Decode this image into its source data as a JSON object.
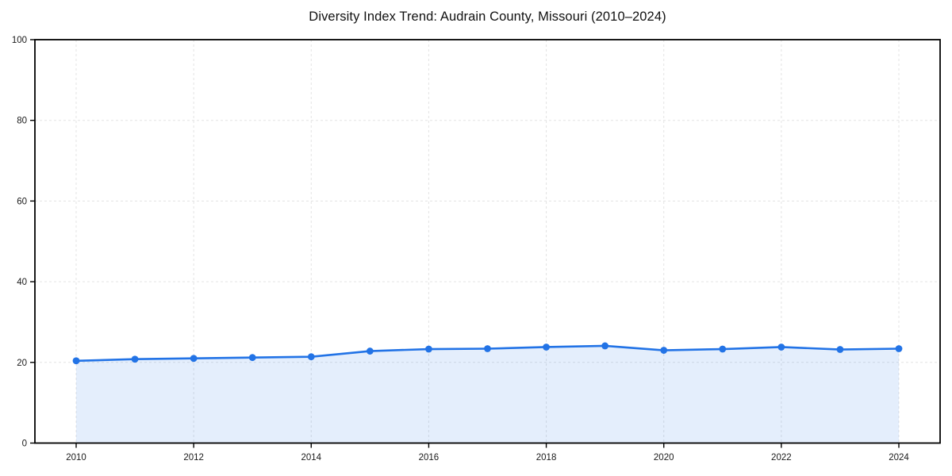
{
  "chart_data": {
    "type": "line",
    "title": "Diversity Index Trend: Audrain County, Missouri (2010–2024)",
    "xlabel": "",
    "ylabel": "",
    "x": [
      2010,
      2011,
      2012,
      2013,
      2014,
      2015,
      2016,
      2017,
      2018,
      2019,
      2020,
      2021,
      2022,
      2023,
      2024
    ],
    "values": [
      20.4,
      20.8,
      21.0,
      21.2,
      21.4,
      22.8,
      23.3,
      23.4,
      23.8,
      24.1,
      23.0,
      23.3,
      23.8,
      23.2,
      23.4
    ],
    "ylim": [
      0,
      100
    ],
    "y_ticks": [
      0,
      20,
      40,
      60,
      80,
      100
    ],
    "x_tick_labels": [
      "2010",
      "2012",
      "2014",
      "2016",
      "2018",
      "2020",
      "2022",
      "2024"
    ],
    "grid": true,
    "grid_style": "dashed",
    "legend": false,
    "marker": "circle",
    "colors": {
      "line": "#2273e6",
      "marker": "#2273e6",
      "area_fill": "rgba(34, 115, 230, 0.12)",
      "grid": "#e3e3e3",
      "axis": "#000000",
      "tick_label": "#1a1a1a",
      "title": "#111111",
      "background": "#ffffff"
    }
  }
}
